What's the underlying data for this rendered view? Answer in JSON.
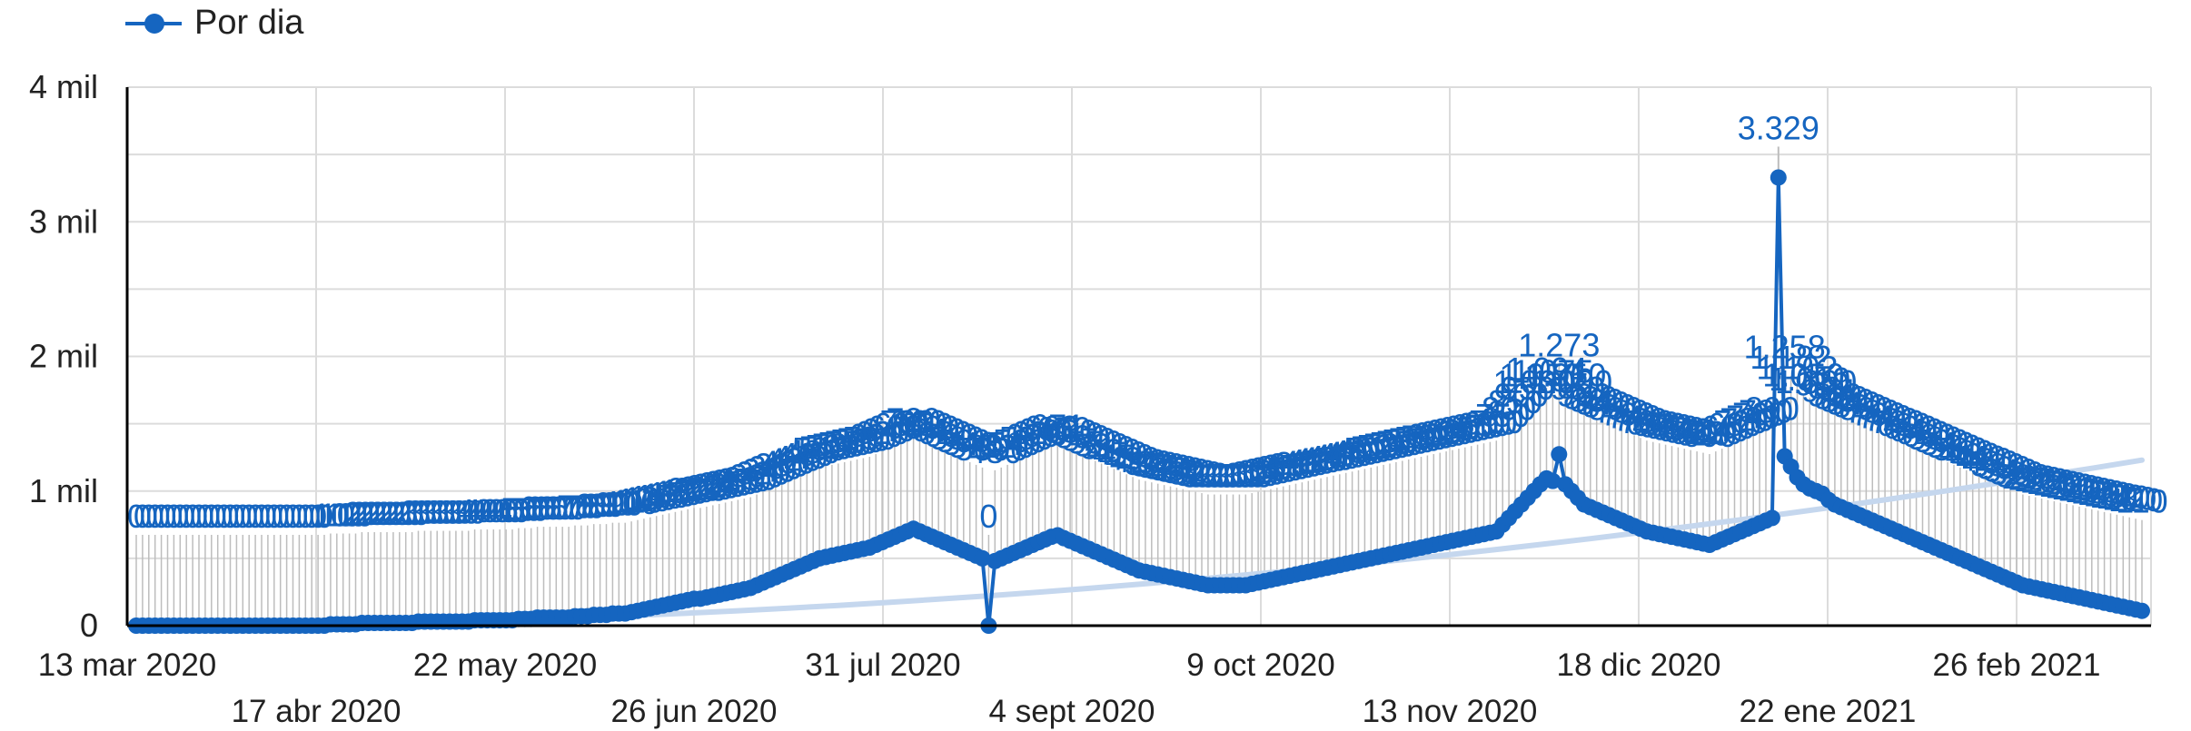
{
  "legend": {
    "label": "Por dia"
  },
  "colors": {
    "series": "#1565c0",
    "trend": "#c5d7ee",
    "grid": "#dcdcdc",
    "axis": "#000000",
    "stem": "#bdbdbd"
  },
  "chart_data": {
    "type": "line",
    "series": [
      {
        "name": "Por dia",
        "start_date": "13 mar 2020",
        "interval_days": 1
      }
    ],
    "y_ticks": [
      {
        "value": 0,
        "label": "0"
      },
      {
        "value": 1000,
        "label": "1 mil"
      },
      {
        "value": 2000,
        "label": "2 mil"
      },
      {
        "value": 3000,
        "label": "3 mil"
      },
      {
        "value": 4000,
        "label": "4 mil"
      }
    ],
    "ylim": [
      0,
      4000
    ],
    "x_ticks": [
      {
        "label": "13 mar 2020",
        "row": 0
      },
      {
        "label": "17 abr 2020",
        "row": 1
      },
      {
        "label": "22 may 2020",
        "row": 0
      },
      {
        "label": "26 jun 2020",
        "row": 1
      },
      {
        "label": "31 jul 2020",
        "row": 0
      },
      {
        "label": "4 sept 2020",
        "row": 1
      },
      {
        "label": "9 oct 2020",
        "row": 0
      },
      {
        "label": "13 nov 2020",
        "row": 1
      },
      {
        "label": "18 dic 2020",
        "row": 0
      },
      {
        "label": "22 ene 2021",
        "row": 1
      },
      {
        "label": "26 feb 2021",
        "row": 0
      }
    ],
    "x_range": [
      "13 mar 2020",
      "19 mar 2021"
    ],
    "grid": true,
    "trendline": {
      "start": 0,
      "end": 1230
    },
    "key_points": [
      {
        "date": "13 mar 2020",
        "value": 0
      },
      {
        "date": "17 abr 2020",
        "value": 10
      },
      {
        "date": "22 may 2020",
        "value": 60
      },
      {
        "date": "26 jun 2020",
        "value": 320
      },
      {
        "date": "31 jul 2020",
        "value": 0
      },
      {
        "date": "4 sept 2020",
        "value": 440
      },
      {
        "date": "9 oct 2020",
        "value": 320
      },
      {
        "date": "13 nov 2020",
        "value": 530
      },
      {
        "date": "18 dic 2020",
        "value": 700
      },
      {
        "date": "22 ene 2021",
        "value": 3329
      },
      {
        "date": "26 feb 2021",
        "value": 420
      }
    ],
    "values": [
      0,
      0,
      0,
      0,
      0,
      0,
      0,
      0,
      0,
      0,
      0,
      0,
      0,
      0,
      0,
      0,
      0,
      0,
      0,
      0,
      0,
      0,
      0,
      0,
      0,
      0,
      0,
      0,
      0,
      0,
      0,
      10,
      10,
      10,
      10,
      10,
      20,
      20,
      20,
      20,
      20,
      20,
      20,
      20,
      20,
      30,
      30,
      30,
      30,
      30,
      30,
      30,
      30,
      30,
      40,
      40,
      40,
      40,
      40,
      40,
      40,
      50,
      50,
      50,
      60,
      60,
      60,
      60,
      60,
      60,
      70,
      70,
      70,
      80,
      80,
      80,
      90,
      90,
      90,
      100,
      110,
      120,
      130,
      140,
      150,
      160,
      170,
      180,
      190,
      200,
      200,
      210,
      220,
      230,
      240,
      250,
      260,
      270,
      280,
      300,
      320,
      340,
      360,
      380,
      400,
      420,
      440,
      460,
      480,
      500,
      510,
      520,
      530,
      540,
      550,
      560,
      570,
      580,
      600,
      620,
      640,
      660,
      680,
      700,
      720,
      700,
      680,
      660,
      640,
      620,
      600,
      580,
      560,
      540,
      520,
      500,
      0,
      480,
      500,
      520,
      540,
      560,
      580,
      600,
      620,
      640,
      660,
      671,
      650,
      630,
      610,
      590,
      570,
      550,
      530,
      510,
      490,
      470,
      450,
      430,
      410,
      400,
      390,
      380,
      370,
      360,
      350,
      340,
      330,
      320,
      310,
      300,
      300,
      300,
      300,
      300,
      300,
      300,
      310,
      320,
      330,
      340,
      350,
      360,
      370,
      380,
      390,
      400,
      410,
      420,
      430,
      440,
      450,
      460,
      470,
      480,
      490,
      500,
      510,
      520,
      530,
      540,
      550,
      560,
      570,
      580,
      590,
      600,
      610,
      620,
      630,
      640,
      650,
      660,
      670,
      680,
      690,
      700,
      750,
      800,
      850,
      900,
      950,
      1000,
      1050,
      1094,
      1075,
      1273,
      1050,
      1000,
      950,
      900,
      880,
      860,
      840,
      820,
      800,
      780,
      760,
      740,
      720,
      700,
      690,
      680,
      670,
      660,
      650,
      640,
      630,
      620,
      610,
      600,
      620,
      640,
      660,
      680,
      700,
      720,
      740,
      760,
      780,
      800,
      3329,
      1258,
      1182,
      1102,
      1050,
      1019,
      1000,
      980,
      934,
      900,
      880,
      860,
      840,
      820,
      800,
      780,
      760,
      740,
      720,
      700,
      680,
      660,
      640,
      620,
      600,
      580,
      560,
      540,
      520,
      500,
      480,
      460,
      440,
      420,
      400,
      380,
      360,
      340,
      320,
      300,
      290,
      280,
      270,
      260,
      250,
      240,
      230,
      220,
      210,
      200,
      190,
      180,
      170,
      160,
      150,
      140,
      130,
      120,
      110
    ]
  }
}
